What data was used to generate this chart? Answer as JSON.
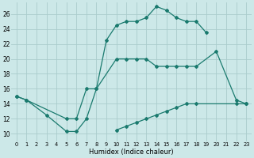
{
  "xlabel": "Humidex (Indice chaleur)",
  "bg_color": "#cce8e8",
  "line_color": "#1a7a6e",
  "grid_color": "#aacccc",
  "xlim": [
    -0.5,
    23.5
  ],
  "ylim": [
    9,
    27.5
  ],
  "yticks": [
    10,
    12,
    14,
    16,
    18,
    20,
    22,
    24,
    26
  ],
  "xticks": [
    0,
    1,
    2,
    3,
    4,
    5,
    6,
    7,
    8,
    9,
    10,
    11,
    12,
    13,
    14,
    15,
    16,
    17,
    18,
    19,
    20,
    21,
    22,
    23
  ],
  "series": [
    {
      "x": [
        0,
        1,
        3,
        5,
        6,
        7,
        8,
        9,
        10,
        11,
        12,
        13,
        14,
        15,
        16,
        17,
        18,
        19
      ],
      "y": [
        15,
        14.5,
        12.5,
        10.3,
        10.3,
        12,
        16,
        22.5,
        24.5,
        25,
        25,
        25.5,
        27,
        26.5,
        25.5,
        25,
        25,
        23.5
      ]
    },
    {
      "x": [
        0,
        1,
        5,
        6,
        7,
        8,
        10,
        11,
        12,
        13,
        14,
        15,
        16,
        17,
        18,
        20,
        22,
        23
      ],
      "y": [
        15,
        14.5,
        12,
        12,
        16,
        16,
        20,
        20,
        20,
        20,
        19,
        19,
        19,
        19,
        19,
        21,
        14.5,
        14
      ]
    },
    {
      "x": [
        10,
        11,
        12,
        13,
        14,
        15,
        16,
        17,
        18,
        22,
        23
      ],
      "y": [
        10.5,
        11,
        11.5,
        12,
        12.5,
        13,
        13.5,
        14,
        14,
        14,
        14
      ]
    }
  ]
}
